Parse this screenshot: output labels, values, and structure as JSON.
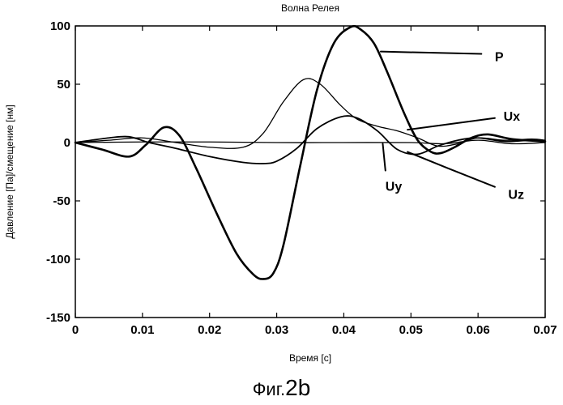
{
  "chart_data": {
    "type": "line",
    "title": "Волна Релея",
    "xlabel": "Время [c]",
    "ylabel": "Давление [Па]/смещение [нм]",
    "xlim": [
      0,
      0.07
    ],
    "ylim": [
      -150,
      100
    ],
    "xticks": [
      0,
      0.01,
      0.02,
      0.03,
      0.04,
      0.05,
      0.06,
      0.07
    ],
    "xtick_labels": [
      "0",
      "0.01",
      "0.02",
      "0.03",
      "0.04",
      "0.05",
      "0.06",
      "0.07"
    ],
    "yticks": [
      -150,
      -100,
      -50,
      0,
      50,
      100
    ],
    "ytick_labels": [
      "-150",
      "-100",
      "-50",
      "0",
      "50",
      "100"
    ],
    "grid": false,
    "series": [
      {
        "name": "P",
        "label_at": [
          0.0625,
          74
        ],
        "leader": [
          [
            0.0455,
            78
          ],
          [
            0.0605,
            76
          ]
        ],
        "x": [
          0,
          0.004,
          0.008,
          0.0105,
          0.0132,
          0.0155,
          0.018,
          0.021,
          0.024,
          0.0265,
          0.028,
          0.0295,
          0.031,
          0.0335,
          0.036,
          0.0385,
          0.041,
          0.0425,
          0.0445,
          0.0465,
          0.049,
          0.051,
          0.053,
          0.0545,
          0.0565,
          0.059,
          0.0615,
          0.065,
          0.07
        ],
        "y": [
          0,
          -6,
          -12,
          -2,
          13,
          6,
          -22,
          -60,
          -95,
          -113,
          -117,
          -112,
          -88,
          -20,
          45,
          85,
          99,
          97,
          85,
          60,
          25,
          2,
          -8,
          -9,
          -4,
          4,
          7,
          3,
          1
        ]
      },
      {
        "name": "Ux",
        "label_at": [
          0.0638,
          23
        ],
        "leader": [
          [
            0.0495,
            11
          ],
          [
            0.0625,
            21
          ]
        ],
        "x": [
          0,
          0.005,
          0.01,
          0.015,
          0.02,
          0.025,
          0.028,
          0.031,
          0.034,
          0.0365,
          0.0395,
          0.042,
          0.045,
          0.048,
          0.051,
          0.054,
          0.057,
          0.06,
          0.064,
          0.068,
          0.07
        ],
        "y": [
          0,
          2,
          4,
          0,
          -4,
          -4,
          8,
          35,
          54,
          50,
          32,
          20,
          14,
          10,
          4,
          -3,
          -1,
          4,
          2,
          3,
          2
        ],
        "stroke_width": 1.3
      },
      {
        "name": "Uz",
        "label_at": [
          0.0645,
          -44
        ],
        "leader": [
          [
            0.0495,
            -8
          ],
          [
            0.0555,
            -22
          ],
          [
            0.0625,
            -38
          ]
        ],
        "x": [
          0,
          0.005,
          0.008,
          0.011,
          0.015,
          0.02,
          0.025,
          0.028,
          0.03,
          0.033,
          0.036,
          0.0395,
          0.042,
          0.045,
          0.048,
          0.051,
          0.054,
          0.057,
          0.06,
          0.064,
          0.068,
          0.07
        ],
        "y": [
          0,
          4,
          5,
          0,
          -5,
          -12,
          -17,
          -18,
          -16,
          -5,
          12,
          22,
          21,
          10,
          -6,
          -10,
          -3,
          2,
          4,
          1,
          2,
          1
        ],
        "stroke_width": 1.8
      },
      {
        "name": "Uy",
        "label_at": [
          0.0462,
          -37
        ],
        "leader": [
          [
            0.0458,
            -1
          ],
          [
            0.0462,
            -24
          ]
        ],
        "x": [
          0,
          0.01,
          0.02,
          0.03,
          0.04,
          0.05,
          0.055,
          0.06,
          0.065,
          0.07
        ],
        "y": [
          0,
          0.5,
          0.5,
          0,
          0,
          0,
          -1,
          2,
          -1,
          0
        ],
        "stroke_width": 1.3
      }
    ]
  },
  "caption": {
    "prefix": "Фиг.",
    "number": "2b"
  }
}
